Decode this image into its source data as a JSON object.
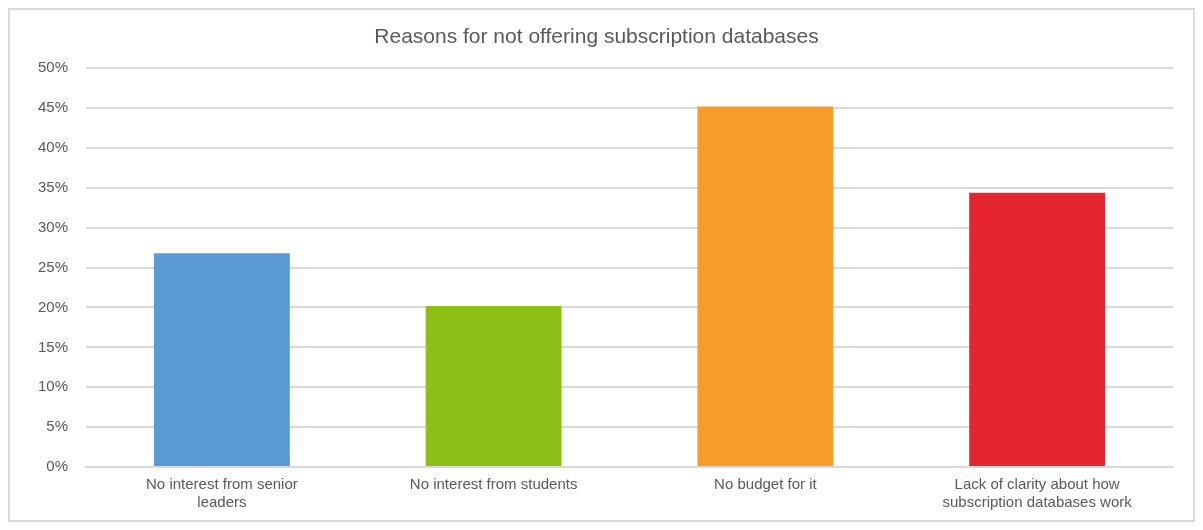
{
  "chart_data": {
    "type": "bar",
    "title": "Reasons for not offering subscription databases",
    "categories": [
      "No interest from senior leaders",
      "No interest from students",
      "No budget for it",
      "Lack of clarity about how subscription databases work"
    ],
    "values": [
      26.8,
      20.2,
      45.2,
      34.4
    ],
    "colors": [
      "#5b9bd5",
      "#8bbf13",
      "#f89c29",
      "#e5262f"
    ],
    "ylim": [
      0,
      50
    ],
    "yticks": [
      {
        "value": 0,
        "label": "0%"
      },
      {
        "value": 5,
        "label": "5%"
      },
      {
        "value": 10,
        "label": "10%"
      },
      {
        "value": 15,
        "label": "15%"
      },
      {
        "value": 20,
        "label": "20%"
      },
      {
        "value": 25,
        "label": "25%"
      },
      {
        "value": 30,
        "label": "30%"
      },
      {
        "value": 35,
        "label": "35%"
      },
      {
        "value": 40,
        "label": "40%"
      },
      {
        "value": 45,
        "label": "45%"
      },
      {
        "value": 50,
        "label": "50%"
      }
    ],
    "grid": "y",
    "legend": false
  }
}
